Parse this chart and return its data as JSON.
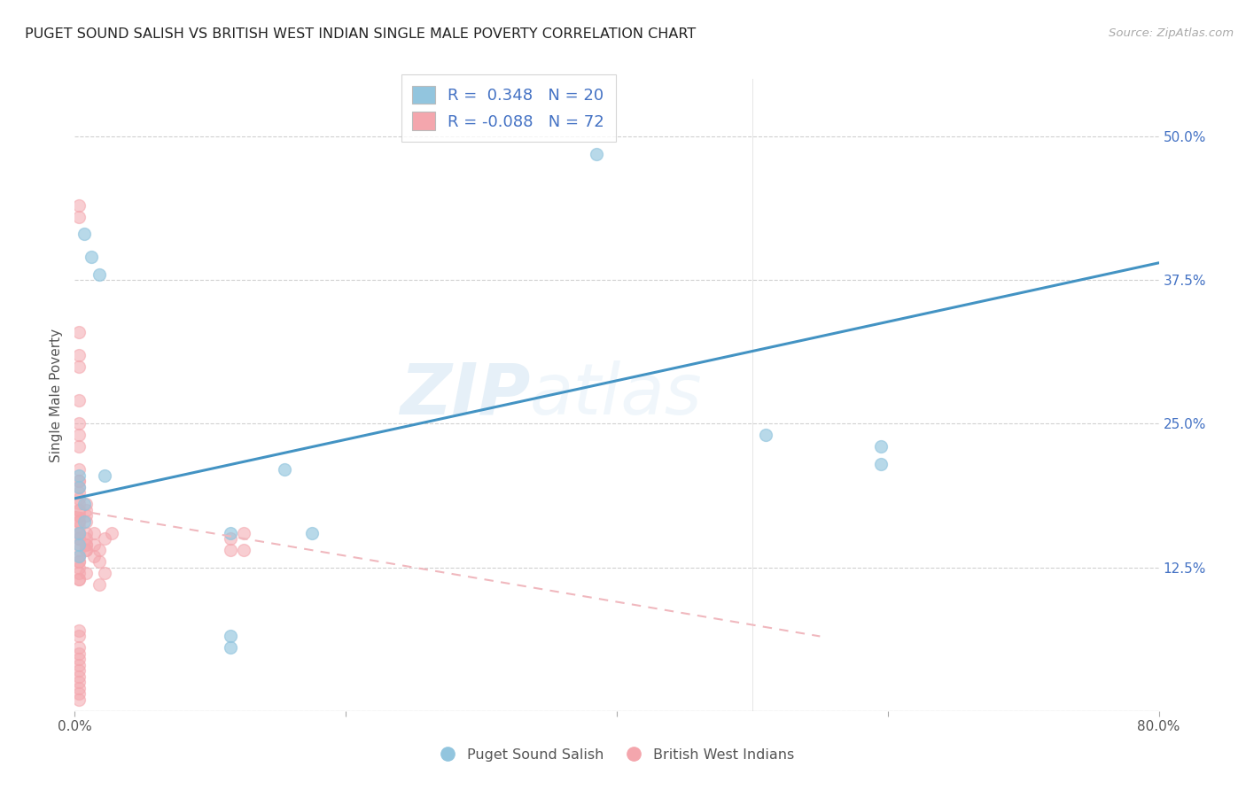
{
  "title": "PUGET SOUND SALISH VS BRITISH WEST INDIAN SINGLE MALE POVERTY CORRELATION CHART",
  "source": "Source: ZipAtlas.com",
  "ylabel": "Single Male Poverty",
  "yticks": [
    0.0,
    0.125,
    0.25,
    0.375,
    0.5
  ],
  "ytick_labels": [
    "",
    "12.5%",
    "25.0%",
    "37.5%",
    "50.0%"
  ],
  "xlim": [
    0.0,
    0.8
  ],
  "ylim": [
    0.0,
    0.55
  ],
  "legend_blue_R": " 0.348",
  "legend_blue_N": "20",
  "legend_pink_R": "-0.088",
  "legend_pink_N": "72",
  "legend_label_blue": "Puget Sound Salish",
  "legend_label_pink": "British West Indians",
  "blue_color": "#92c5de",
  "pink_color": "#f4a6ad",
  "blue_line_color": "#4393c3",
  "pink_line_color": "#f0b8be",
  "watermark_zip": "ZIP",
  "watermark_atlas": "atlas",
  "blue_x": [
    0.385,
    0.595,
    0.007,
    0.012,
    0.018,
    0.003,
    0.003,
    0.022,
    0.007,
    0.007,
    0.155,
    0.115,
    0.115,
    0.51,
    0.595,
    0.115,
    0.175,
    0.003,
    0.003,
    0.003
  ],
  "blue_y": [
    0.485,
    0.215,
    0.415,
    0.395,
    0.38,
    0.205,
    0.195,
    0.205,
    0.18,
    0.165,
    0.21,
    0.065,
    0.055,
    0.24,
    0.23,
    0.155,
    0.155,
    0.155,
    0.145,
    0.135
  ],
  "pink_x": [
    0.003,
    0.003,
    0.003,
    0.003,
    0.003,
    0.003,
    0.003,
    0.003,
    0.003,
    0.003,
    0.003,
    0.003,
    0.003,
    0.003,
    0.003,
    0.003,
    0.003,
    0.003,
    0.003,
    0.003,
    0.003,
    0.003,
    0.003,
    0.003,
    0.003,
    0.003,
    0.003,
    0.003,
    0.003,
    0.003,
    0.003,
    0.003,
    0.003,
    0.003,
    0.003,
    0.003,
    0.008,
    0.008,
    0.008,
    0.008,
    0.008,
    0.008,
    0.008,
    0.008,
    0.008,
    0.008,
    0.008,
    0.014,
    0.014,
    0.014,
    0.018,
    0.018,
    0.018,
    0.022,
    0.022,
    0.027,
    0.115,
    0.115,
    0.125,
    0.125,
    0.003,
    0.003,
    0.003,
    0.003,
    0.003,
    0.003,
    0.003,
    0.003,
    0.003,
    0.003,
    0.003,
    0.003
  ],
  "pink_y": [
    0.44,
    0.43,
    0.33,
    0.31,
    0.3,
    0.27,
    0.25,
    0.24,
    0.23,
    0.21,
    0.2,
    0.2,
    0.195,
    0.19,
    0.185,
    0.18,
    0.175,
    0.175,
    0.17,
    0.17,
    0.165,
    0.165,
    0.16,
    0.155,
    0.155,
    0.15,
    0.15,
    0.145,
    0.14,
    0.135,
    0.13,
    0.13,
    0.125,
    0.12,
    0.115,
    0.115,
    0.18,
    0.175,
    0.17,
    0.165,
    0.155,
    0.15,
    0.145,
    0.145,
    0.14,
    0.14,
    0.12,
    0.155,
    0.145,
    0.135,
    0.14,
    0.13,
    0.11,
    0.15,
    0.12,
    0.155,
    0.15,
    0.14,
    0.155,
    0.14,
    0.07,
    0.065,
    0.055,
    0.05,
    0.045,
    0.04,
    0.035,
    0.03,
    0.025,
    0.02,
    0.015,
    0.01
  ],
  "blue_line_x": [
    0.0,
    0.8
  ],
  "blue_line_y": [
    0.185,
    0.39
  ],
  "pink_line_x": [
    0.0,
    0.55
  ],
  "pink_line_y": [
    0.175,
    0.065
  ]
}
